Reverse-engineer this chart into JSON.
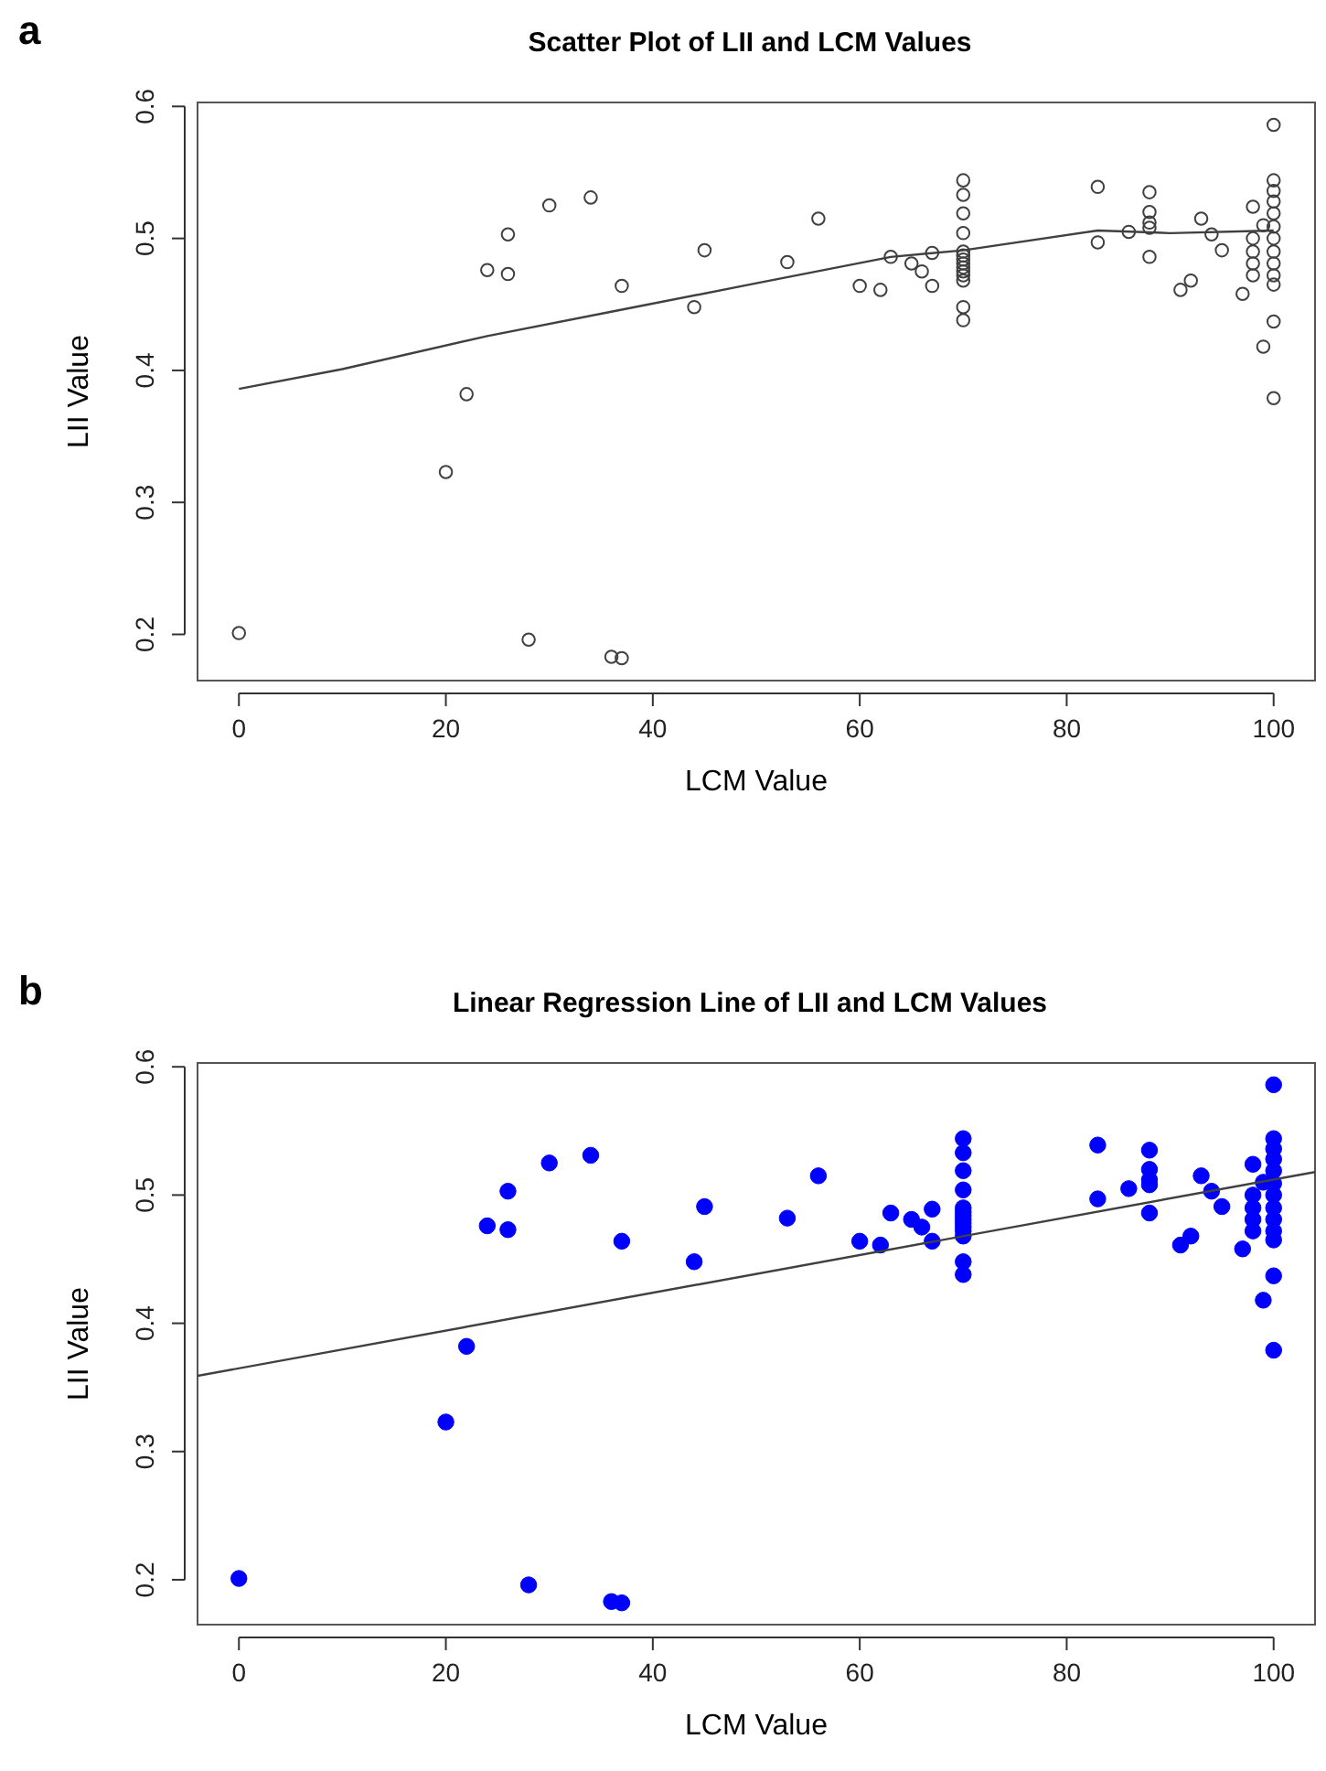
{
  "chart_data": [
    {
      "type": "scatter",
      "title": "Scatter Plot of LII and LCM Values",
      "xlabel": "LCM Value",
      "ylabel": "LII Value",
      "annotations": [
        "a"
      ],
      "xlim": [
        -4,
        104
      ],
      "ylim": [
        0.165,
        0.603
      ],
      "xticks": [
        0,
        20,
        40,
        60,
        80,
        100
      ],
      "yticks": [
        0.2,
        0.3,
        0.4,
        0.5,
        0.6
      ],
      "grid": false,
      "series": [
        {
          "marker": "circle",
          "color": "#404040",
          "x": [
            0,
            20,
            22,
            24,
            26,
            26,
            28,
            30,
            34,
            36,
            37,
            37,
            44,
            45,
            53,
            56,
            60,
            62,
            63,
            65,
            66,
            67,
            67,
            70,
            70,
            70,
            70,
            70,
            70,
            70,
            70,
            70,
            70,
            70,
            70,
            70,
            70,
            83,
            83,
            86,
            88,
            88,
            88,
            88,
            88,
            91,
            92,
            93,
            94,
            95,
            97,
            98,
            98,
            98,
            98,
            98,
            99,
            99,
            100,
            100,
            100,
            100,
            100,
            100,
            100,
            100,
            100,
            100,
            100,
            100,
            100
          ],
          "values": [
            0.201,
            0.323,
            0.382,
            0.476,
            0.503,
            0.473,
            0.196,
            0.525,
            0.531,
            0.183,
            0.182,
            0.464,
            0.448,
            0.491,
            0.482,
            0.515,
            0.464,
            0.461,
            0.486,
            0.481,
            0.475,
            0.464,
            0.489,
            0.544,
            0.533,
            0.519,
            0.504,
            0.49,
            0.487,
            0.484,
            0.481,
            0.478,
            0.475,
            0.472,
            0.468,
            0.448,
            0.438,
            0.539,
            0.497,
            0.505,
            0.535,
            0.52,
            0.512,
            0.508,
            0.486,
            0.461,
            0.468,
            0.515,
            0.503,
            0.491,
            0.458,
            0.524,
            0.5,
            0.49,
            0.481,
            0.472,
            0.418,
            0.51,
            0.586,
            0.544,
            0.536,
            0.528,
            0.519,
            0.509,
            0.5,
            0.49,
            0.481,
            0.472,
            0.465,
            0.437,
            0.379
          ]
        },
        {
          "type": "line",
          "marker": "none",
          "color": "#404040",
          "x": [
            0,
            10,
            24,
            37,
            50,
            63,
            70,
            83,
            90,
            100
          ],
          "values": [
            0.386,
            0.401,
            0.426,
            0.446,
            0.466,
            0.486,
            0.491,
            0.506,
            0.504,
            0.506
          ]
        }
      ]
    },
    {
      "type": "scatter",
      "title": "Linear Regression Line of LII and LCM Values",
      "xlabel": "LCM Value",
      "ylabel": "LII Value",
      "annotations": [
        "b"
      ],
      "xlim": [
        -4,
        104
      ],
      "ylim": [
        0.165,
        0.603
      ],
      "xticks": [
        0,
        20,
        40,
        60,
        80,
        100
      ],
      "yticks": [
        0.2,
        0.3,
        0.4,
        0.5,
        0.6
      ],
      "grid": false,
      "series": [
        {
          "marker": "circle",
          "color": "#0000ff",
          "x": [
            0,
            20,
            22,
            24,
            26,
            26,
            28,
            30,
            34,
            36,
            37,
            37,
            44,
            45,
            53,
            56,
            60,
            62,
            63,
            65,
            66,
            67,
            67,
            70,
            70,
            70,
            70,
            70,
            70,
            70,
            70,
            70,
            70,
            70,
            70,
            70,
            70,
            83,
            83,
            86,
            88,
            88,
            88,
            88,
            88,
            91,
            92,
            93,
            94,
            95,
            97,
            98,
            98,
            98,
            98,
            98,
            99,
            99,
            100,
            100,
            100,
            100,
            100,
            100,
            100,
            100,
            100,
            100,
            100,
            100,
            100
          ],
          "values": [
            0.201,
            0.323,
            0.382,
            0.476,
            0.503,
            0.473,
            0.196,
            0.525,
            0.531,
            0.183,
            0.182,
            0.464,
            0.448,
            0.491,
            0.482,
            0.515,
            0.464,
            0.461,
            0.486,
            0.481,
            0.475,
            0.464,
            0.489,
            0.544,
            0.533,
            0.519,
            0.504,
            0.49,
            0.487,
            0.484,
            0.481,
            0.478,
            0.475,
            0.472,
            0.468,
            0.448,
            0.438,
            0.539,
            0.497,
            0.505,
            0.535,
            0.52,
            0.512,
            0.508,
            0.486,
            0.461,
            0.468,
            0.515,
            0.503,
            0.491,
            0.458,
            0.524,
            0.5,
            0.49,
            0.481,
            0.472,
            0.418,
            0.51,
            0.586,
            0.544,
            0.536,
            0.528,
            0.519,
            0.509,
            0.5,
            0.49,
            0.481,
            0.472,
            0.465,
            0.437,
            0.379
          ]
        },
        {
          "type": "line",
          "marker": "none",
          "color": "#404040",
          "x": [
            -4,
            104
          ],
          "values": [
            0.359,
            0.518
          ]
        }
      ]
    }
  ]
}
